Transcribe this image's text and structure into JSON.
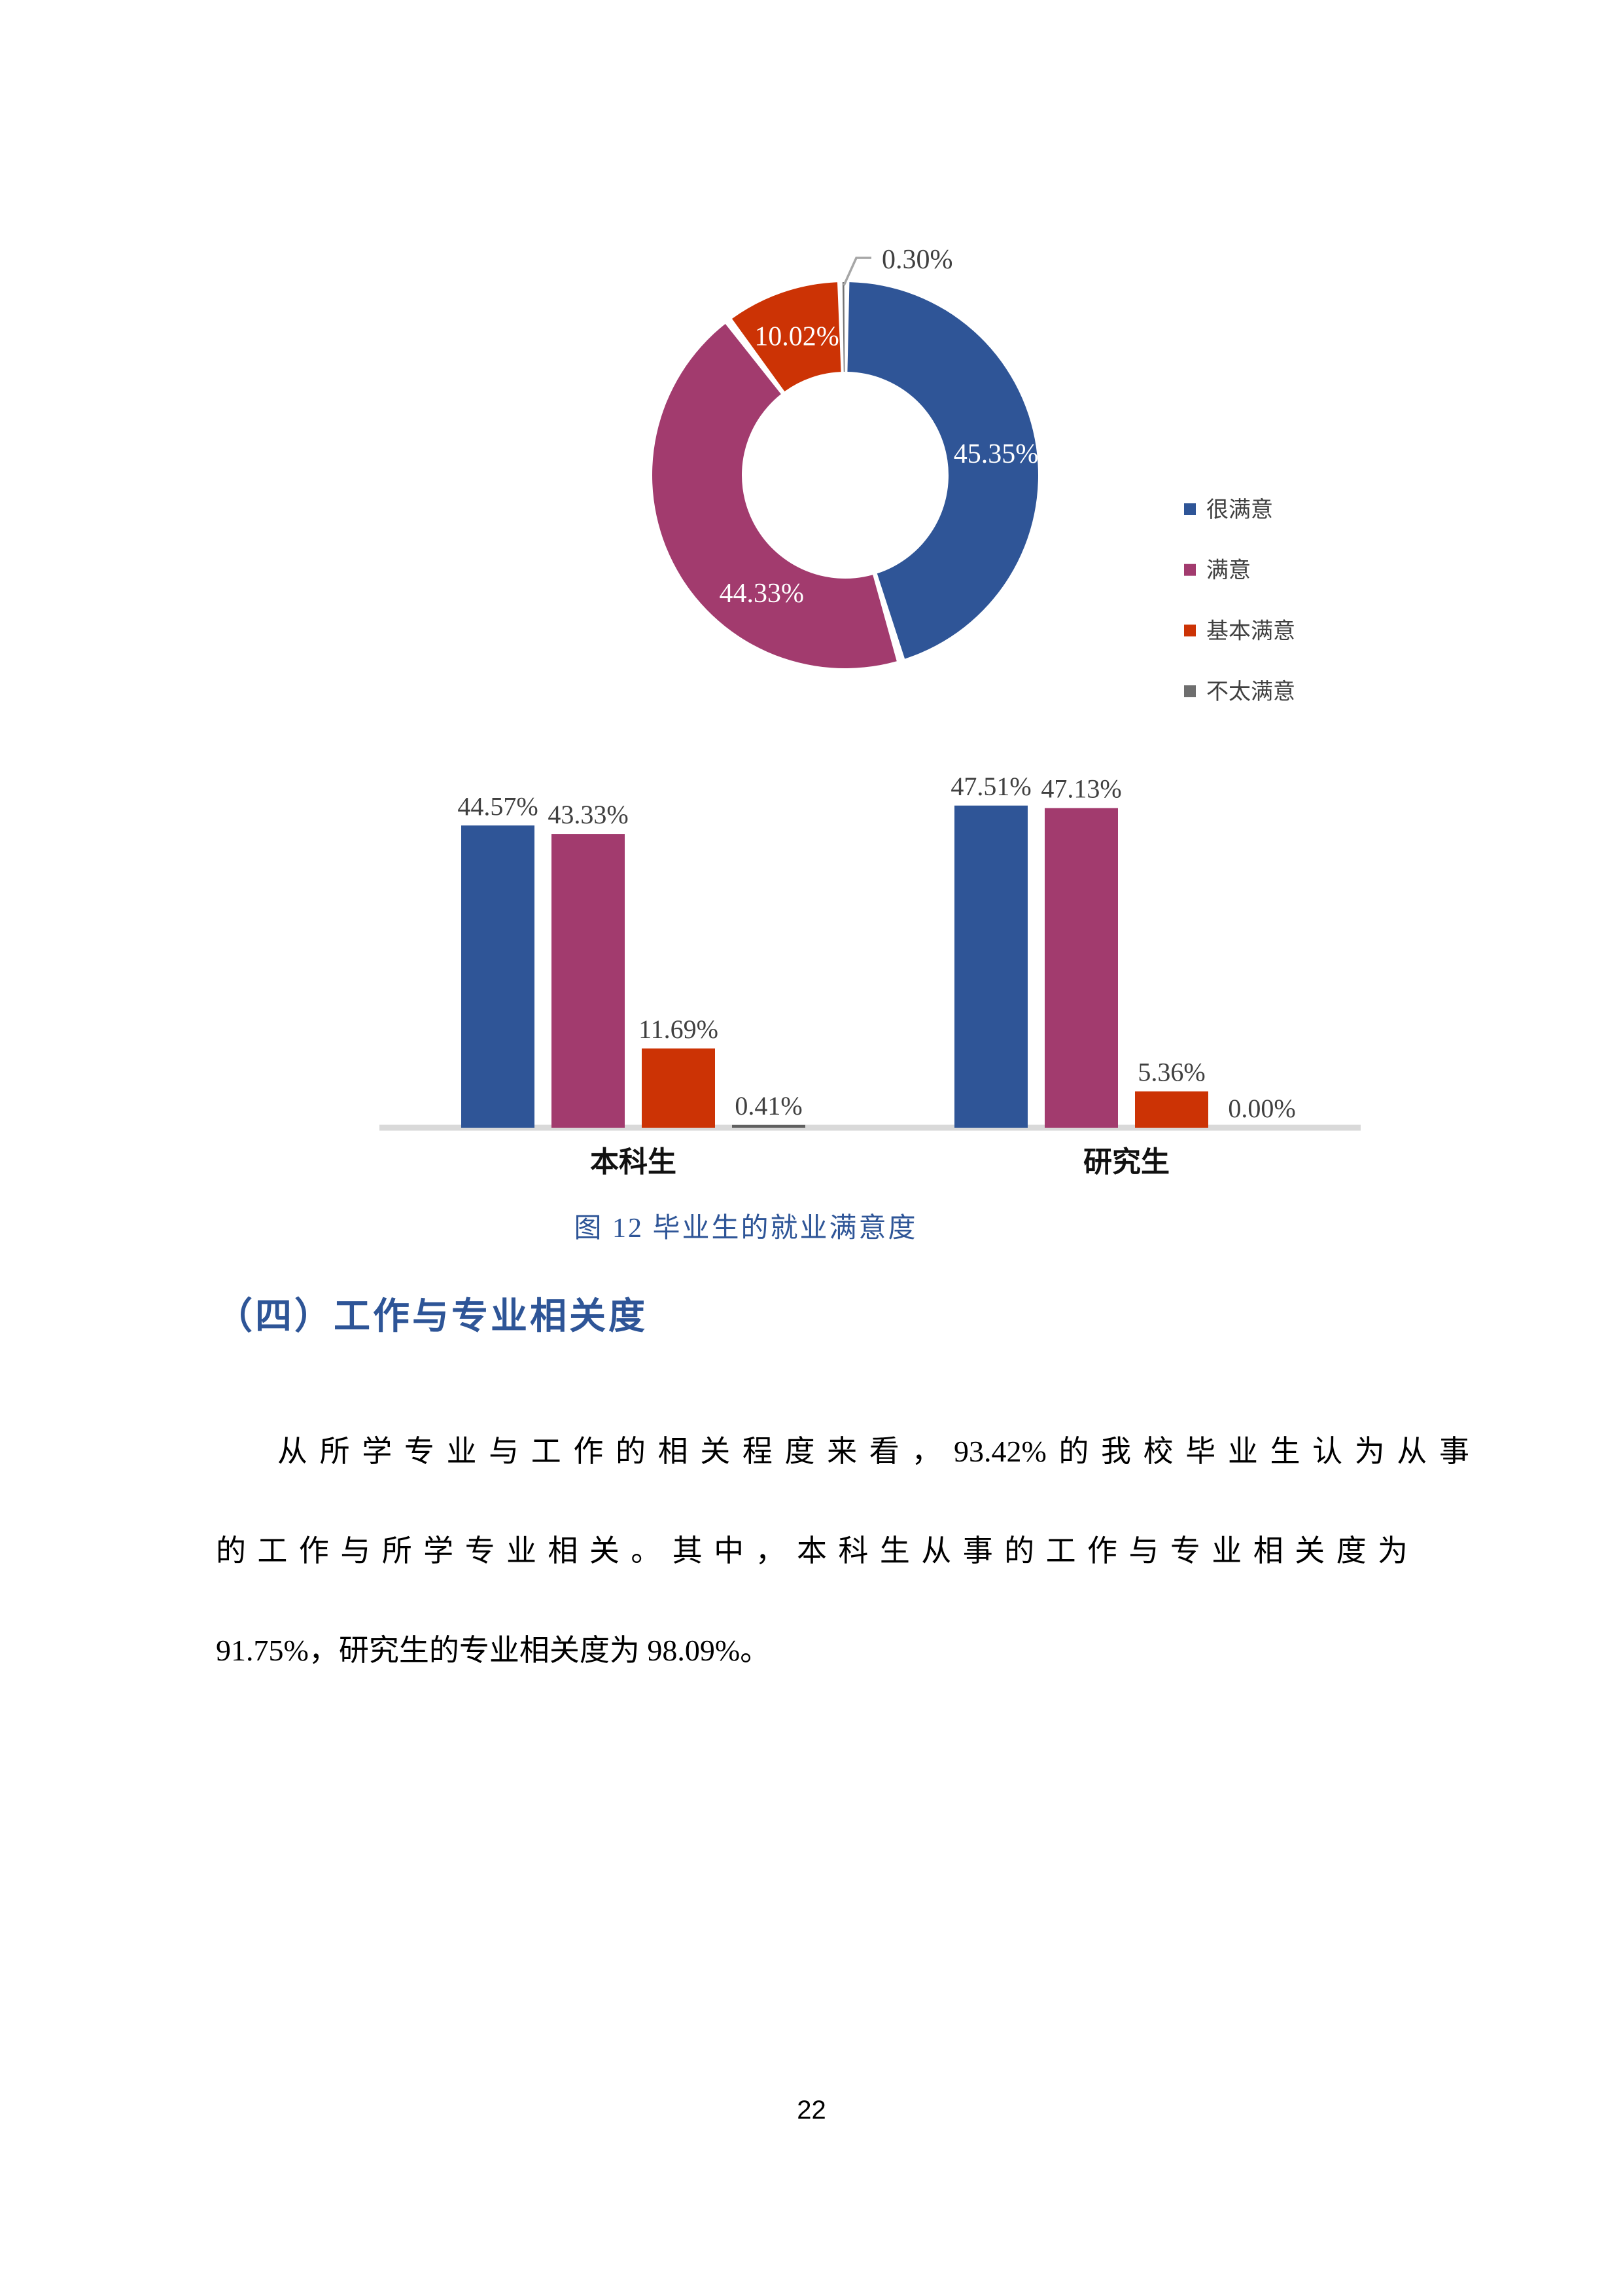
{
  "figure": {
    "caption": "图 12  毕业生的就业满意度"
  },
  "section": {
    "heading": "（四）工作与专业相关度",
    "paragraph_lines": [
      "从所学专业与工作的相关程度来看，93.42%的我校毕业生认为从事",
      "的工作与所学专业相关。其中，本科生从事的工作与专业相关度为",
      "91.75%，研究生的专业相关度为 98.09%。"
    ]
  },
  "page_number": "22",
  "colors": {
    "very_satisfied": "#2F5597",
    "satisfied": "#A23B6E",
    "basically_satisfied": "#CC3305",
    "not_satisfied": "#6E6E6E",
    "axis_line": "#D9D9D9",
    "leader_line": "#A6A6A6",
    "label_dark": "#404040",
    "heading_blue": "#2E5597"
  },
  "chart_data": [
    {
      "type": "pie",
      "subtype": "donut",
      "title": "",
      "labels": [
        "很满意",
        "满意",
        "基本满意",
        "不太满意"
      ],
      "values": [
        45.35,
        44.33,
        10.02,
        0.3
      ],
      "data_labels": [
        "45.35%",
        "44.33%",
        "10.02%",
        "0.30%"
      ],
      "colors": [
        "#2F5597",
        "#A23B6E",
        "#CC3305",
        "#737373"
      ],
      "hole_ratio": 0.54,
      "legend_position": "right",
      "legend": [
        "很满意",
        "满意",
        "基本满意",
        "不太满意"
      ]
    },
    {
      "type": "bar",
      "categories": [
        "本科生",
        "研究生"
      ],
      "series": [
        {
          "name": "很满意",
          "color": "#2F5597",
          "values": [
            44.57,
            47.51
          ]
        },
        {
          "name": "满意",
          "color": "#A23B6E",
          "values": [
            43.33,
            47.13
          ]
        },
        {
          "name": "基本满意",
          "color": "#CC3305",
          "values": [
            11.69,
            5.36
          ]
        },
        {
          "name": "不太满意",
          "color": "#606060",
          "values": [
            0.41,
            0.0
          ]
        }
      ],
      "data_labels": [
        [
          "44.57%",
          "47.51%"
        ],
        [
          "43.33%",
          "47.13%"
        ],
        [
          "11.69%",
          "5.36%"
        ],
        [
          "0.41%",
          "0.00%"
        ]
      ],
      "xlabel": "",
      "ylabel": "",
      "ylim": [
        0,
        50
      ],
      "grid": false,
      "legend_position": "none"
    }
  ]
}
